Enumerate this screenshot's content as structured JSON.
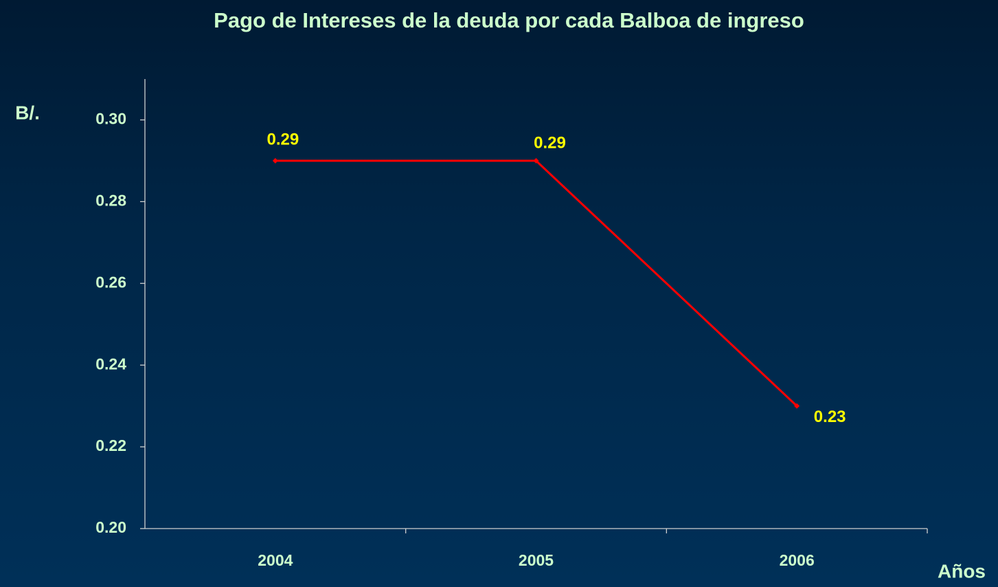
{
  "chart_data": {
    "type": "line",
    "title": "Pago de Intereses de la deuda por cada Balboa de ingreso",
    "y_label": "B/.",
    "x_label": "Años",
    "categories": [
      "2004",
      "2005",
      "2006"
    ],
    "series": [
      {
        "name": "Pago de Intereses",
        "color": "#ff0000",
        "values": [
          0.29,
          0.29,
          0.23
        ]
      }
    ],
    "ylim": [
      0.2,
      0.31
    ],
    "yticks": [
      {
        "value": 0.2,
        "label": "0.20"
      },
      0.22,
      0.24,
      0.26,
      0.28,
      {
        "value": 0.3,
        "label": "0.30"
      }
    ],
    "label_color": "#ffff00"
  }
}
